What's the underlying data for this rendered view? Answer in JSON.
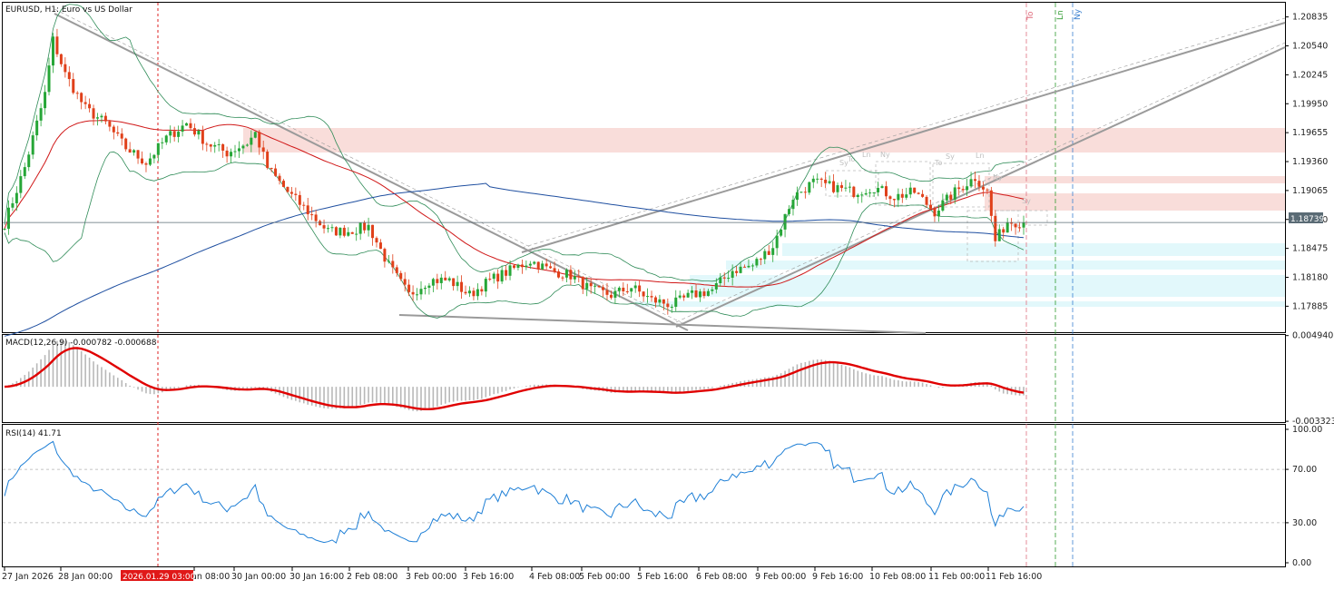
{
  "chart_data": [
    {
      "type": "candlestick",
      "title": "EURUSD, H1:  Euro vs US Dollar",
      "symbol": "EURUSD",
      "timeframe": "H1",
      "description": "Euro vs US Dollar",
      "ylim": [
        1.1762,
        1.2098
      ],
      "y_ticks": [
        "1.20835",
        "1.20540",
        "1.20245",
        "1.19950",
        "1.19655",
        "1.19360",
        "1.19065",
        "1.18770",
        "1.18475",
        "1.18180",
        "1.17885"
      ],
      "current_price": "1.18739",
      "x_ticks": [
        "27 Jan 2026",
        "28 Jan 00:00",
        "2026.01.29 03:00",
        "an 08:00",
        "30 Jan 00:00",
        "30 Jan 16:00",
        "2 Feb 08:00",
        "3 Feb 00:00",
        "3 Feb 16:00",
        "4 Feb 08:00",
        "5 Feb 00:00",
        "5 Feb 16:00",
        "6 Feb 08:00",
        "9 Feb 00:00",
        "9 Feb 16:00",
        "10 Feb 08:00",
        "11 Feb 00:00",
        "11 Feb 16:00"
      ],
      "crosshair_time": "2026.01.29 03:00",
      "session_labels": [
        "To",
        "Ln",
        "Ny"
      ],
      "box_labels": [
        "Sy",
        "To",
        "Ln",
        "Ny",
        "To",
        "Sy",
        "Ln",
        "Ny",
        "Sy"
      ],
      "close_path": [
        [
          0,
          1.1873
        ],
        [
          5,
          1.193
        ],
        [
          10,
          1.2005
        ],
        [
          12,
          1.206
        ],
        [
          15,
          1.2025
        ],
        [
          20,
          1.199
        ],
        [
          25,
          1.1975
        ],
        [
          30,
          1.195
        ],
        [
          35,
          1.1935
        ],
        [
          40,
          1.196
        ],
        [
          45,
          1.1975
        ],
        [
          50,
          1.1955
        ],
        [
          55,
          1.1945
        ],
        [
          60,
          1.1955
        ],
        [
          62,
          1.1965
        ],
        [
          65,
          1.193
        ],
        [
          70,
          1.1905
        ],
        [
          75,
          1.1885
        ],
        [
          80,
          1.1865
        ],
        [
          85,
          1.1865
        ],
        [
          90,
          1.187
        ],
        [
          95,
          1.183
        ],
        [
          100,
          1.18
        ],
        [
          105,
          1.1815
        ],
        [
          110,
          1.1815
        ],
        [
          115,
          1.18
        ],
        [
          120,
          1.1815
        ],
        [
          125,
          1.1825
        ],
        [
          130,
          1.1835
        ],
        [
          135,
          1.1825
        ],
        [
          140,
          1.182
        ],
        [
          145,
          1.1805
        ],
        [
          150,
          1.18
        ],
        [
          155,
          1.1808
        ],
        [
          160,
          1.1795
        ],
        [
          165,
          1.179
        ],
        [
          170,
          1.18
        ],
        [
          175,
          1.1805
        ],
        [
          180,
          1.1825
        ],
        [
          185,
          1.183
        ],
        [
          190,
          1.185
        ],
        [
          195,
          1.19
        ],
        [
          200,
          1.1915
        ],
        [
          205,
          1.191
        ],
        [
          210,
          1.1905
        ],
        [
          215,
          1.191
        ],
        [
          220,
          1.19
        ],
        [
          225,
          1.1905
        ],
        [
          230,
          1.1885
        ],
        [
          235,
          1.1905
        ],
        [
          240,
          1.192
        ],
        [
          243,
          1.1905
        ],
        [
          245,
          1.1855
        ],
        [
          248,
          1.1875
        ],
        [
          252,
          1.18739
        ]
      ]
    },
    {
      "type": "macd",
      "label": "MACD(12,26,9) -0.000782 -0.000688",
      "ylim": [
        -0.0034,
        0.005
      ],
      "y_ticks": [
        "0.004940",
        "-0.003323"
      ]
    },
    {
      "type": "rsi",
      "label": "RSI(14) 41.71",
      "ylim": [
        0,
        100
      ],
      "y_ticks": [
        "100.00",
        "70.00",
        "30.00",
        "0.00"
      ]
    }
  ]
}
